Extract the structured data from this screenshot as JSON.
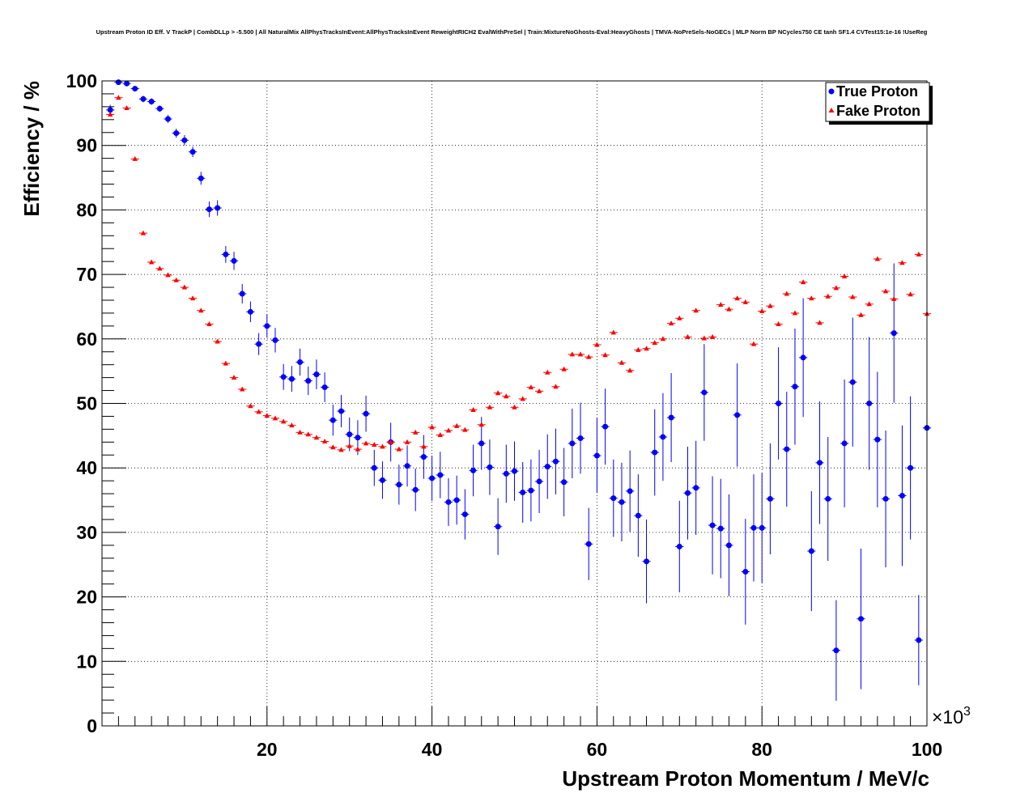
{
  "chart_data": {
    "type": "scatter",
    "title": "Upstream Proton ID Eff. V TrackP | CombDLLp > -5.500 | All NaturalMix AllPhysTracksInEvent:AllPhysTracksInEvent ReweightRICH2 EvalWithPreSel | Train:MixtureNoGhosts-Eval:HeavyGhosts | TMVA-NoPreSels-NoGECs | MLP Norm BP NCycles750 CE tanh SF1.4 CVTest15:1e-16 !UseReg",
    "xlabel": "Upstream Proton Momentum / MeV/c",
    "ylabel": "Efficiency / %",
    "x_multiplier_label": "×10",
    "x_multiplier_exponent": "3",
    "xlim": [
      0,
      100
    ],
    "ylim": [
      0,
      100
    ],
    "x_ticks": [
      20,
      40,
      60,
      80,
      100
    ],
    "y_ticks": [
      0,
      10,
      20,
      30,
      40,
      50,
      60,
      70,
      80,
      90,
      100
    ],
    "grid": true,
    "legend_position": "top-right",
    "series": [
      {
        "name": "True Proton",
        "color": "#0000ff",
        "marker": "circle",
        "x": [
          1,
          2,
          3,
          4,
          5,
          6,
          7,
          8,
          9,
          10,
          11,
          12,
          13,
          14,
          15,
          16,
          17,
          18,
          19,
          20,
          21,
          22,
          23,
          24,
          25,
          26,
          27,
          28,
          29,
          30,
          31,
          32,
          33,
          34,
          35,
          36,
          37,
          38,
          39,
          40,
          41,
          42,
          43,
          44,
          45,
          46,
          47,
          48,
          49,
          50,
          51,
          52,
          53,
          54,
          55,
          56,
          57,
          58,
          59,
          60,
          61,
          62,
          63,
          64,
          65,
          66,
          67,
          68,
          69,
          70,
          71,
          72,
          73,
          74,
          75,
          76,
          77,
          78,
          79,
          80,
          81,
          82,
          83,
          84,
          85,
          86,
          87,
          88,
          89,
          90,
          91,
          92,
          93,
          94,
          95,
          96,
          97,
          98,
          99,
          100
        ],
        "y": [
          95.5,
          99.8,
          99.6,
          98.8,
          97.2,
          96.8,
          95.7,
          94.1,
          91.9,
          90.8,
          89.0,
          84.9,
          80.1,
          80.3,
          73.1,
          72.1,
          67.0,
          64.2,
          59.2,
          62.0,
          59.8,
          54.1,
          53.8,
          56.4,
          53.5,
          54.5,
          52.5,
          47.4,
          48.8,
          45.2,
          44.7,
          48.4,
          40.0,
          38.1,
          44.0,
          37.4,
          40.3,
          36.6,
          41.7,
          38.4,
          38.9,
          34.7,
          35.0,
          32.8,
          39.6,
          43.8,
          40.1,
          30.9,
          39.1,
          39.5,
          36.2,
          36.5,
          37.9,
          40.2,
          41.0,
          37.8,
          43.8,
          44.6,
          28.2,
          41.9,
          46.4,
          35.3,
          34.7,
          36.4,
          32.6,
          25.5,
          42.4,
          44.8,
          47.8,
          27.8,
          36.1,
          36.9,
          51.7,
          31.1,
          30.6,
          28.0,
          48.2,
          23.9,
          30.7,
          30.7,
          35.2,
          50.0,
          42.9,
          52.6,
          57.1,
          27.1,
          40.8,
          35.2,
          11.7,
          43.8,
          53.3,
          16.6,
          50.0,
          44.4,
          35.2,
          60.9,
          35.7,
          40.0,
          13.3,
          46.2
        ],
        "err": [
          0.8,
          0.2,
          0.3,
          0.4,
          0.5,
          0.5,
          0.5,
          0.6,
          0.7,
          0.8,
          0.8,
          1.0,
          1.2,
          1.2,
          1.3,
          1.4,
          1.5,
          1.6,
          1.7,
          1.8,
          1.9,
          2.0,
          2.0,
          2.1,
          2.2,
          2.3,
          2.3,
          2.4,
          2.5,
          2.6,
          2.7,
          2.8,
          2.8,
          2.9,
          3.0,
          3.1,
          3.2,
          3.3,
          3.4,
          3.5,
          3.6,
          3.7,
          3.8,
          3.9,
          4.0,
          4.1,
          4.3,
          4.4,
          4.5,
          4.6,
          4.7,
          4.8,
          4.9,
          5.0,
          5.1,
          5.3,
          5.4,
          5.5,
          5.6,
          5.8,
          5.9,
          6.0,
          6.1,
          6.3,
          6.4,
          6.5,
          6.7,
          6.8,
          6.9,
          7.1,
          7.2,
          7.3,
          7.5,
          7.6,
          7.7,
          7.9,
          8.0,
          8.2,
          8.3,
          8.5,
          8.6,
          8.7,
          8.9,
          9.0,
          9.2,
          9.3,
          9.5,
          9.6,
          7.8,
          9.9,
          10.0,
          10.9,
          10.3,
          10.5,
          10.6,
          10.8,
          10.9,
          11.1,
          7.0,
          11.4
        ]
      },
      {
        "name": "Fake Proton",
        "color": "#ff0000",
        "marker": "triangle",
        "x": [
          1,
          2,
          3,
          4,
          5,
          6,
          7,
          8,
          9,
          10,
          11,
          12,
          13,
          14,
          15,
          16,
          17,
          18,
          19,
          20,
          21,
          22,
          23,
          24,
          25,
          26,
          27,
          28,
          29,
          30,
          31,
          32,
          33,
          34,
          35,
          36,
          37,
          38,
          39,
          40,
          41,
          42,
          43,
          44,
          45,
          46,
          47,
          48,
          49,
          50,
          51,
          52,
          53,
          54,
          55,
          56,
          57,
          58,
          59,
          60,
          61,
          62,
          63,
          64,
          65,
          66,
          67,
          68,
          69,
          70,
          71,
          72,
          73,
          74,
          75,
          76,
          77,
          78,
          79,
          80,
          81,
          82,
          83,
          84,
          85,
          86,
          87,
          88,
          89,
          90,
          91,
          92,
          93,
          94,
          95,
          96,
          97,
          98,
          99,
          100
        ],
        "y": [
          94.8,
          97.4,
          95.8,
          87.9,
          76.4,
          71.9,
          70.9,
          69.9,
          69.1,
          68.0,
          66.3,
          64.4,
          62.3,
          59.6,
          56.2,
          54.0,
          52.2,
          49.6,
          48.7,
          48.1,
          47.7,
          47.2,
          46.6,
          45.5,
          45.2,
          44.7,
          44.1,
          43.2,
          42.8,
          43.4,
          42.9,
          43.8,
          43.6,
          43.3,
          44.0,
          42.9,
          44.0,
          45.5,
          43.3,
          46.3,
          45.1,
          45.8,
          46.5,
          45.9,
          49.0,
          46.7,
          49.4,
          51.6,
          51.1,
          49.4,
          50.7,
          52.5,
          51.9,
          54.8,
          52.6,
          55.3,
          57.6,
          57.6,
          57.2,
          59.1,
          57.5,
          61.0,
          56.3,
          55.1,
          58.3,
          58.5,
          59.4,
          60.0,
          62.4,
          63.2,
          60.3,
          64.4,
          60.1,
          60.3,
          65.3,
          64.6,
          66.3,
          65.7,
          59.2,
          64.3,
          65.1,
          62.3,
          67.0,
          64.0,
          68.8,
          66.3,
          62.5,
          66.6,
          67.9,
          69.7,
          66.5,
          63.7,
          65.4,
          72.4,
          67.4,
          66.2,
          71.8,
          66.9,
          73.1,
          63.9
        ]
      }
    ]
  }
}
